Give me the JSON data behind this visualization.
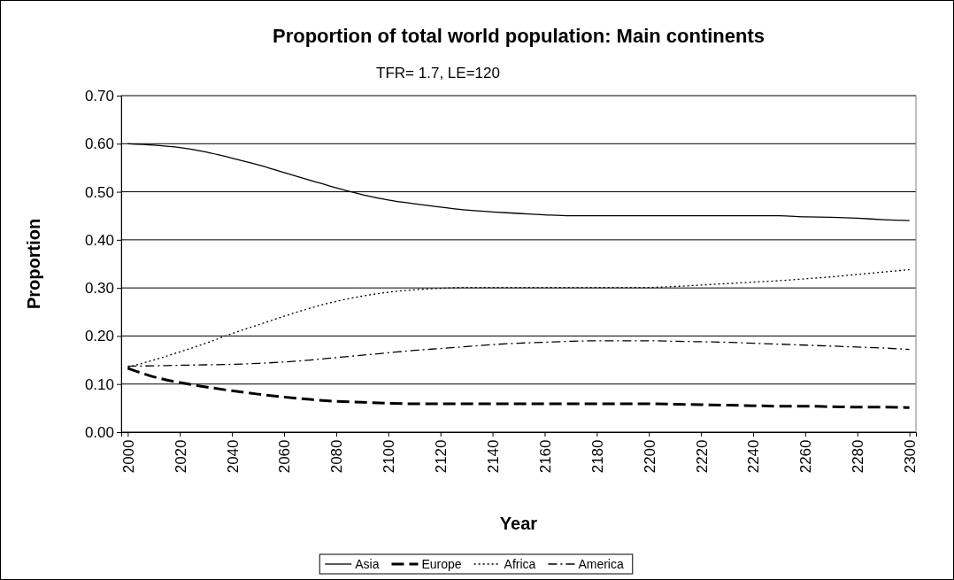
{
  "chart_data": {
    "type": "line",
    "title": "Proportion of total world population: Main continents",
    "subtitle": "TFR= 1.7, LE=120",
    "xlabel": "Year",
    "ylabel": "Proportion",
    "x": [
      2000,
      2010,
      2020,
      2030,
      2040,
      2050,
      2060,
      2070,
      2080,
      2090,
      2100,
      2110,
      2120,
      2130,
      2140,
      2150,
      2160,
      2170,
      2180,
      2190,
      2200,
      2210,
      2220,
      2230,
      2240,
      2250,
      2260,
      2270,
      2280,
      2290,
      2300
    ],
    "xlim": [
      1997.5,
      2302.5
    ],
    "xticks": [
      2000,
      2020,
      2040,
      2060,
      2080,
      2100,
      2120,
      2140,
      2160,
      2180,
      2200,
      2220,
      2240,
      2260,
      2280,
      2300
    ],
    "ylim": [
      0,
      0.7
    ],
    "yticks": [
      {
        "value": 0,
        "label": "0.00"
      },
      {
        "value": 0.1,
        "label": "0.10"
      },
      {
        "value": 0.2,
        "label": "0.20"
      },
      {
        "value": 0.3,
        "label": "0.30"
      },
      {
        "value": 0.4,
        "label": "0.40"
      },
      {
        "value": 0.5,
        "label": "0.50"
      },
      {
        "value": 0.6,
        "label": "0.60"
      },
      {
        "value": 0.7,
        "label": "0.70"
      }
    ],
    "grid": "y",
    "legend": "bottom",
    "marker": "none",
    "series": [
      {
        "name": "Asia",
        "color": "#000000",
        "line_style": "solid",
        "values": [
          0.6,
          0.597,
          0.592,
          0.583,
          0.57,
          0.556,
          0.54,
          0.524,
          0.508,
          0.494,
          0.483,
          0.475,
          0.468,
          0.462,
          0.458,
          0.455,
          0.452,
          0.45,
          0.45,
          0.45,
          0.45,
          0.45,
          0.45,
          0.45,
          0.45,
          0.45,
          0.448,
          0.447,
          0.445,
          0.442,
          0.44
        ]
      },
      {
        "name": "Europe",
        "color": "#000000",
        "line_style": "dashed",
        "values": [
          0.133,
          0.115,
          0.103,
          0.094,
          0.086,
          0.079,
          0.073,
          0.068,
          0.064,
          0.062,
          0.06,
          0.059,
          0.059,
          0.059,
          0.059,
          0.059,
          0.059,
          0.059,
          0.059,
          0.059,
          0.059,
          0.058,
          0.057,
          0.056,
          0.055,
          0.054,
          0.054,
          0.053,
          0.052,
          0.052,
          0.051
        ]
      },
      {
        "name": "Africa",
        "color": "#000000",
        "line_style": "dotted",
        "values": [
          0.135,
          0.15,
          0.167,
          0.185,
          0.205,
          0.223,
          0.241,
          0.258,
          0.272,
          0.283,
          0.291,
          0.296,
          0.299,
          0.301,
          0.301,
          0.301,
          0.301,
          0.301,
          0.301,
          0.301,
          0.301,
          0.303,
          0.306,
          0.309,
          0.312,
          0.315,
          0.319,
          0.323,
          0.328,
          0.333,
          0.338
        ]
      },
      {
        "name": "America",
        "color": "#000000",
        "line_style": "dashdot",
        "values": [
          0.137,
          0.138,
          0.139,
          0.14,
          0.141,
          0.143,
          0.146,
          0.15,
          0.155,
          0.16,
          0.165,
          0.17,
          0.174,
          0.178,
          0.182,
          0.185,
          0.187,
          0.189,
          0.19,
          0.19,
          0.19,
          0.189,
          0.188,
          0.187,
          0.185,
          0.183,
          0.181,
          0.179,
          0.177,
          0.175,
          0.172
        ]
      }
    ]
  }
}
